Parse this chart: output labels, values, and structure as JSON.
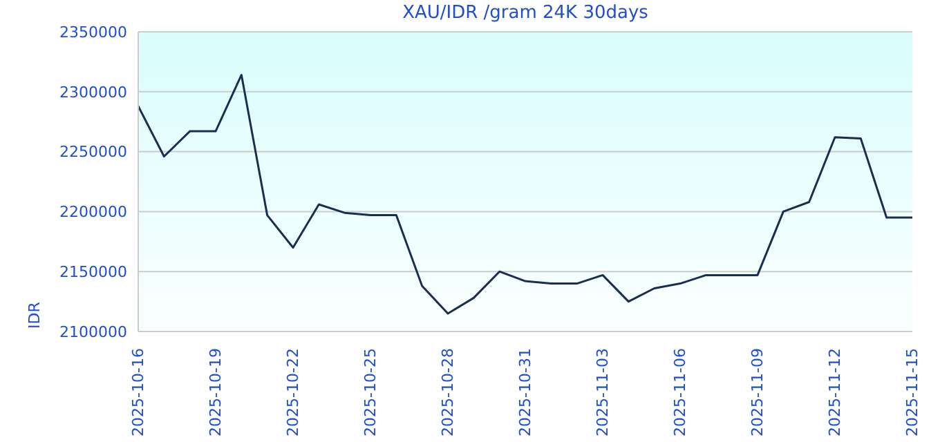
{
  "chart_data": {
    "type": "line",
    "title": "XAU/IDR /gram 24K 30days",
    "ylabel": "IDR",
    "x": [
      "2025-10-16",
      "2025-10-17",
      "2025-10-18",
      "2025-10-19",
      "2025-10-20",
      "2025-10-21",
      "2025-10-22",
      "2025-10-23",
      "2025-10-24",
      "2025-10-25",
      "2025-10-26",
      "2025-10-27",
      "2025-10-28",
      "2025-10-29",
      "2025-10-30",
      "2025-10-31",
      "2025-11-01",
      "2025-11-02",
      "2025-11-03",
      "2025-11-04",
      "2025-11-05",
      "2025-11-06",
      "2025-11-07",
      "2025-11-08",
      "2025-11-09",
      "2025-11-10",
      "2025-11-11",
      "2025-11-12",
      "2025-11-13",
      "2025-11-14",
      "2025-11-15"
    ],
    "series": [
      {
        "color": "#1a2e50",
        "values": [
          2288000,
          2246000,
          2267000,
          2267000,
          2314000,
          2197000,
          2170000,
          2206000,
          2199000,
          2197000,
          2197000,
          2138000,
          2115000,
          2128000,
          2150000,
          2142000,
          2140000,
          2140000,
          2147000,
          2125000,
          2136000,
          2140000,
          2147000,
          2147000,
          2147000,
          2200000,
          2208000,
          2262000,
          2261000,
          2195000,
          2195000
        ]
      }
    ],
    "xlim": [
      "2025-10-16",
      "2025-11-15"
    ],
    "xticks": [
      "2025-10-16",
      "2025-10-19",
      "2025-10-22",
      "2025-10-25",
      "2025-10-28",
      "2025-10-31",
      "2025-11-03",
      "2025-11-06",
      "2025-11-09",
      "2025-11-12",
      "2025-11-15"
    ],
    "ylim": [
      2100000,
      2350000
    ],
    "yticks": [
      2100000,
      2150000,
      2200000,
      2250000,
      2300000,
      2350000
    ],
    "grid": "y",
    "legend": false,
    "marker": "none",
    "line_style": "solid"
  }
}
